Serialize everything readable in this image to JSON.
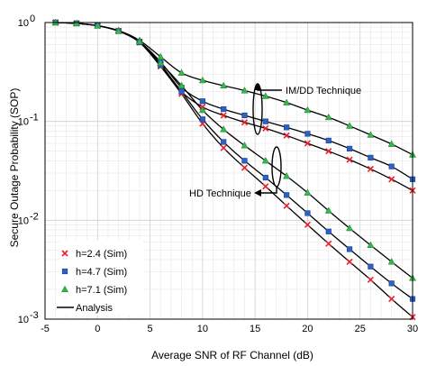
{
  "chart_data": {
    "type": "line",
    "xlabel": "Average SNR of RF Channel (dB)",
    "ylabel": "Secure Outage Probability (SOP)",
    "xlim": [
      -5,
      30
    ],
    "ylim": [
      0.001,
      1
    ],
    "yscale": "log",
    "xticks": [
      "-5",
      "0",
      "5",
      "10",
      "15",
      "20",
      "25",
      "30"
    ],
    "yticks": [
      {
        "base": "10",
        "exp": "0"
      },
      {
        "base": "10",
        "exp": "-1"
      },
      {
        "base": "10",
        "exp": "-2"
      },
      {
        "base": "10",
        "exp": "-3"
      }
    ],
    "grid": true,
    "annotations": [
      {
        "text": "IM/DD Technique"
      },
      {
        "text": "HD Technique"
      }
    ],
    "legend": {
      "position": "bottom-left",
      "entries": [
        {
          "label": "h=2.4 (Sim)",
          "marker": "x",
          "color": "#e8202a"
        },
        {
          "label": "h=4.7 (Sim)",
          "marker": "square",
          "color": "#2a62c9"
        },
        {
          "label": "h=7.1 (Sim)",
          "marker": "triangle",
          "color": "#34b84a"
        },
        {
          "label": "Analysis",
          "marker": "line",
          "color": "#000000"
        }
      ]
    },
    "x": [
      -4,
      -2,
      0,
      2,
      4,
      6,
      8,
      10,
      12,
      14,
      16,
      18,
      20,
      22,
      24,
      26,
      28,
      30
    ],
    "series": [
      {
        "technique": "IM/DD",
        "h": 2.4,
        "marker": "x",
        "color": "#e8202a",
        "values": [
          1.0,
          0.98,
          0.93,
          0.82,
          0.64,
          0.38,
          0.2,
          0.14,
          0.115,
          0.098,
          0.085,
          0.072,
          0.06,
          0.05,
          0.041,
          0.033,
          0.026,
          0.02
        ]
      },
      {
        "technique": "IM/DD",
        "h": 4.7,
        "marker": "square",
        "color": "#2a62c9",
        "values": [
          1.0,
          0.98,
          0.93,
          0.82,
          0.64,
          0.4,
          0.22,
          0.16,
          0.133,
          0.115,
          0.1,
          0.087,
          0.075,
          0.064,
          0.053,
          0.043,
          0.035,
          0.026
        ]
      },
      {
        "technique": "IM/DD",
        "h": 7.1,
        "marker": "triangle",
        "color": "#34b84a",
        "values": [
          1.0,
          0.98,
          0.93,
          0.83,
          0.66,
          0.45,
          0.31,
          0.26,
          0.23,
          0.205,
          0.18,
          0.155,
          0.13,
          0.11,
          0.09,
          0.073,
          0.059,
          0.046
        ]
      },
      {
        "technique": "HD",
        "h": 2.4,
        "marker": "x",
        "color": "#e8202a",
        "values": [
          1.0,
          0.98,
          0.93,
          0.82,
          0.63,
          0.36,
          0.19,
          0.095,
          0.054,
          0.034,
          0.022,
          0.014,
          0.009,
          0.0058,
          0.0038,
          0.0025,
          0.0016,
          0.00105
        ]
      },
      {
        "technique": "HD",
        "h": 4.7,
        "marker": "square",
        "color": "#2a62c9",
        "values": [
          1.0,
          0.98,
          0.93,
          0.82,
          0.63,
          0.37,
          0.2,
          0.105,
          0.062,
          0.04,
          0.027,
          0.018,
          0.0118,
          0.0077,
          0.0051,
          0.0034,
          0.0023,
          0.0016
        ]
      },
      {
        "technique": "HD",
        "h": 7.1,
        "marker": "triangle",
        "color": "#34b84a",
        "values": [
          1.0,
          0.98,
          0.93,
          0.82,
          0.64,
          0.39,
          0.23,
          0.13,
          0.083,
          0.057,
          0.04,
          0.028,
          0.019,
          0.0125,
          0.0083,
          0.0056,
          0.0038,
          0.0026
        ]
      }
    ]
  }
}
